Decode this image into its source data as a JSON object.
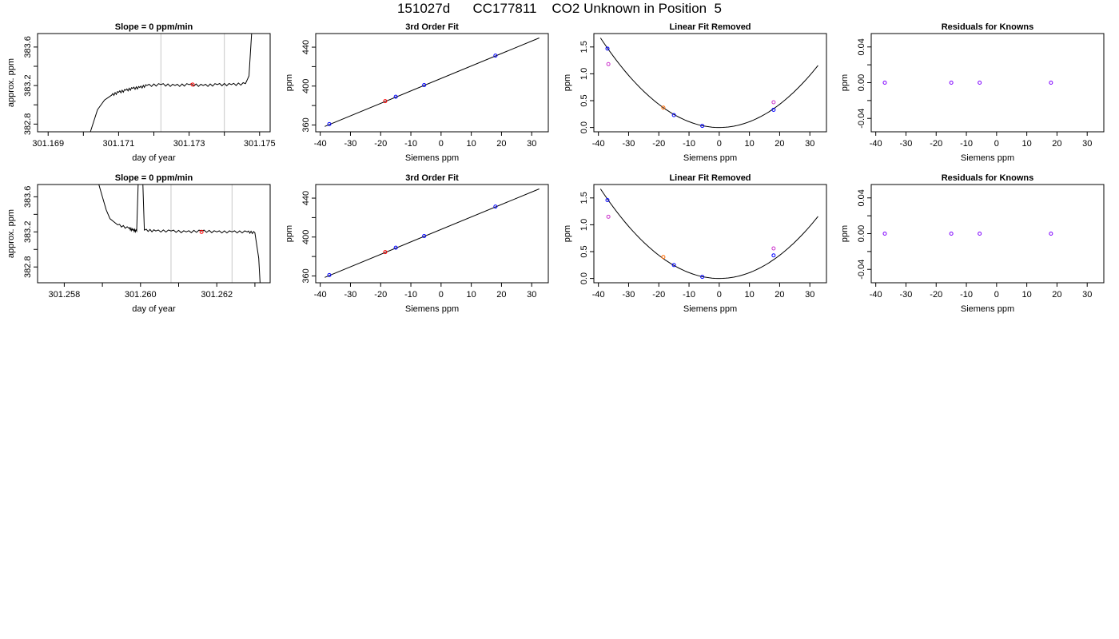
{
  "title": "151027d      CC177811    CO2 Unknown in Position  5",
  "colors": {
    "line": "#000000",
    "grid": "#c8c8c8",
    "blue": "#0000ff",
    "red": "#ff0000",
    "orange": "#ff6a00",
    "magenta": "#cc33cc",
    "purple": "#7f00ff"
  },
  "chart_data": [
    {
      "type": "line",
      "title": "Slope =  0  ppm/min",
      "xlabel": "day of year",
      "ylabel": "approx. ppm",
      "xlim": [
        301.1687,
        301.1753
      ],
      "ylim": [
        382.72,
        383.74
      ],
      "xticks": [
        "301.169",
        "301.171",
        "301.173",
        "301.175"
      ],
      "xtick_values": [
        301.169,
        301.17,
        301.171,
        301.172,
        301.173,
        301.174,
        301.175
      ],
      "yticks": [
        "382.8",
        "383.2",
        "383.6"
      ],
      "ytick_values": [
        382.8,
        383.0,
        383.2,
        383.4,
        383.6
      ],
      "vlines": [
        301.1722,
        301.174
      ],
      "trace": [
        [
          301.17,
          382.5
        ],
        [
          301.1702,
          382.72
        ],
        [
          301.1704,
          382.95
        ],
        [
          301.1706,
          383.05
        ],
        [
          301.1708,
          383.1
        ],
        [
          301.171,
          383.13
        ],
        [
          301.1712,
          383.15
        ],
        [
          301.1714,
          383.17
        ],
        [
          301.1716,
          383.18
        ],
        [
          301.1718,
          383.2
        ],
        [
          301.1722,
          383.21
        ],
        [
          301.1726,
          383.2
        ],
        [
          301.173,
          383.21
        ],
        [
          301.1734,
          383.2
        ],
        [
          301.1738,
          383.21
        ],
        [
          301.1742,
          383.21
        ],
        [
          301.1746,
          383.22
        ],
        [
          301.1747,
          383.3
        ],
        [
          301.1748,
          383.9
        ]
      ],
      "marker": {
        "x": 301.1731,
        "y": 383.21,
        "color": "red"
      }
    },
    {
      "type": "scatter",
      "title": "3rd Order Fit",
      "xlabel": "Siemens ppm",
      "ylabel": "ppm",
      "xlim": [
        -41.5,
        35.5
      ],
      "ylim": [
        353,
        454
      ],
      "xticks": [
        "-40",
        "-30",
        "-20",
        "-10",
        "0",
        "10",
        "20",
        "30"
      ],
      "xtick_values": [
        -40,
        -30,
        -20,
        -10,
        0,
        10,
        20,
        30
      ],
      "yticks": [
        "360",
        "400",
        "440"
      ],
      "ytick_values": [
        360,
        380,
        400,
        420,
        440
      ],
      "fit": {
        "kind": "line",
        "x": [
          -38.5,
          32.5
        ],
        "y": [
          358.5,
          449.5
        ]
      },
      "points": [
        {
          "x": -37,
          "y": 360.9,
          "color": "blue"
        },
        {
          "x": -18.5,
          "y": 384.5,
          "color": "red"
        },
        {
          "x": -15,
          "y": 389,
          "color": "blue"
        },
        {
          "x": -5.6,
          "y": 401,
          "color": "blue"
        },
        {
          "x": 18,
          "y": 431.3,
          "color": "blue"
        }
      ]
    },
    {
      "type": "scatter",
      "title": "Linear Fit Removed",
      "xlabel": "Siemens ppm",
      "ylabel": "ppm",
      "xlim": [
        -41.5,
        35.5
      ],
      "ylim": [
        -0.08,
        1.75
      ],
      "xticks": [
        "-40",
        "-30",
        "-20",
        "-10",
        "0",
        "10",
        "20",
        "30"
      ],
      "xtick_values": [
        -40,
        -30,
        -20,
        -10,
        0,
        10,
        20,
        30
      ],
      "yticks": [
        "0.0",
        "0.5",
        "1.0",
        "1.5"
      ],
      "ytick_values": [
        0,
        0.5,
        1.0,
        1.5
      ],
      "fit": {
        "kind": "quadratic",
        "a": 0.00108,
        "xrange": [
          -39.3,
          32.7
        ]
      },
      "points": [
        {
          "x": -37,
          "y": 1.47,
          "color": "blue"
        },
        {
          "x": -36.7,
          "y": 1.18,
          "color": "magenta"
        },
        {
          "x": -18.5,
          "y": 0.37,
          "color": "orange"
        },
        {
          "x": -15,
          "y": 0.23,
          "color": "blue"
        },
        {
          "x": -5.6,
          "y": 0.03,
          "color": "blue"
        },
        {
          "x": 18,
          "y": 0.33,
          "color": "blue"
        },
        {
          "x": 18,
          "y": 0.47,
          "color": "magenta"
        }
      ]
    },
    {
      "type": "scatter",
      "title": "Residuals for Knowns",
      "xlabel": "Siemens ppm",
      "ylabel": "ppm",
      "xlim": [
        -41.5,
        35.5
      ],
      "ylim": [
        -0.055,
        0.055
      ],
      "xticks": [
        "-40",
        "-30",
        "-20",
        "-10",
        "0",
        "10",
        "20",
        "30"
      ],
      "xtick_values": [
        -40,
        -30,
        -20,
        -10,
        0,
        10,
        20,
        30
      ],
      "yticks": [
        "-0.04",
        "0.00",
        "0.04"
      ],
      "ytick_values": [
        -0.04,
        -0.02,
        0,
        0.02,
        0.04
      ],
      "points": [
        {
          "x": -37,
          "y": 0,
          "color": "purple"
        },
        {
          "x": -15,
          "y": 0,
          "color": "purple"
        },
        {
          "x": -5.6,
          "y": 0,
          "color": "purple"
        },
        {
          "x": 18,
          "y": 0,
          "color": "purple"
        }
      ]
    },
    {
      "type": "line",
      "title": "Slope =  0  ppm/min",
      "xlabel": "day of year",
      "ylabel": "approx. ppm",
      "xlim": [
        301.2573,
        301.2634
      ],
      "ylim": [
        382.62,
        383.74
      ],
      "xticks": [
        "301.258",
        "301.260",
        "301.262"
      ],
      "xtick_values": [
        301.258,
        301.259,
        301.26,
        301.261,
        301.262,
        301.263
      ],
      "yticks": [
        "382.8",
        "383.2",
        "383.6"
      ],
      "ytick_values": [
        382.8,
        383.0,
        383.2,
        383.4,
        383.6
      ],
      "vlines": [
        301.2608,
        301.2624
      ],
      "trace": [
        [
          301.2588,
          383.9
        ],
        [
          301.259,
          383.6
        ],
        [
          301.2591,
          383.45
        ],
        [
          301.2592,
          383.35
        ],
        [
          301.2594,
          383.28
        ],
        [
          301.2597,
          383.24
        ],
        [
          301.2598,
          383.22
        ],
        [
          301.2599,
          383.21
        ],
        [
          301.25995,
          383.9
        ],
        [
          301.26005,
          383.9
        ],
        [
          301.2601,
          383.22
        ],
        [
          301.2604,
          383.21
        ],
        [
          301.2608,
          383.21
        ],
        [
          301.2612,
          383.2
        ],
        [
          301.2616,
          383.21
        ],
        [
          301.262,
          383.2
        ],
        [
          301.2624,
          383.2
        ],
        [
          301.2628,
          383.2
        ],
        [
          301.263,
          383.19
        ],
        [
          301.2631,
          382.9
        ],
        [
          301.26315,
          382.5
        ]
      ],
      "marker": {
        "x": 301.2616,
        "y": 383.2,
        "color": "red"
      }
    },
    {
      "type": "scatter",
      "title": "3rd Order Fit",
      "xlabel": "Siemens ppm",
      "ylabel": "ppm",
      "xlim": [
        -41.5,
        35.5
      ],
      "ylim": [
        353,
        454
      ],
      "xticks": [
        "-40",
        "-30",
        "-20",
        "-10",
        "0",
        "10",
        "20",
        "30"
      ],
      "xtick_values": [
        -40,
        -30,
        -20,
        -10,
        0,
        10,
        20,
        30
      ],
      "yticks": [
        "360",
        "400",
        "440"
      ],
      "ytick_values": [
        360,
        380,
        400,
        420,
        440
      ],
      "fit": {
        "kind": "line",
        "x": [
          -38.5,
          32.5
        ],
        "y": [
          358.5,
          449.5
        ]
      },
      "points": [
        {
          "x": -37,
          "y": 360.9,
          "color": "blue"
        },
        {
          "x": -18.5,
          "y": 384.5,
          "color": "red"
        },
        {
          "x": -15,
          "y": 389,
          "color": "blue"
        },
        {
          "x": -5.6,
          "y": 401,
          "color": "blue"
        },
        {
          "x": 18,
          "y": 431.3,
          "color": "blue"
        }
      ]
    },
    {
      "type": "scatter",
      "title": "Linear Fit Removed",
      "xlabel": "Siemens ppm",
      "ylabel": "ppm",
      "xlim": [
        -41.5,
        35.5
      ],
      "ylim": [
        -0.08,
        1.75
      ],
      "xticks": [
        "-40",
        "-30",
        "-20",
        "-10",
        "0",
        "10",
        "20",
        "30"
      ],
      "xtick_values": [
        -40,
        -30,
        -20,
        -10,
        0,
        10,
        20,
        30
      ],
      "yticks": [
        "0.0",
        "0.5",
        "1.0",
        "1.5"
      ],
      "ytick_values": [
        0,
        0.5,
        1.0,
        1.5
      ],
      "fit": {
        "kind": "quadratic",
        "a": 0.00108,
        "xrange": [
          -39.3,
          32.7
        ]
      },
      "points": [
        {
          "x": -37,
          "y": 1.46,
          "color": "blue"
        },
        {
          "x": -36.7,
          "y": 1.15,
          "color": "magenta"
        },
        {
          "x": -18.5,
          "y": 0.4,
          "color": "orange"
        },
        {
          "x": -15,
          "y": 0.25,
          "color": "blue"
        },
        {
          "x": -5.6,
          "y": 0.03,
          "color": "blue"
        },
        {
          "x": 18,
          "y": 0.43,
          "color": "blue"
        },
        {
          "x": 18,
          "y": 0.56,
          "color": "magenta"
        }
      ]
    },
    {
      "type": "scatter",
      "title": "Residuals for Knowns",
      "xlabel": "Siemens ppm",
      "ylabel": "ppm",
      "xlim": [
        -41.5,
        35.5
      ],
      "ylim": [
        -0.055,
        0.055
      ],
      "xticks": [
        "-40",
        "-30",
        "-20",
        "-10",
        "0",
        "10",
        "20",
        "30"
      ],
      "xtick_values": [
        -40,
        -30,
        -20,
        -10,
        0,
        10,
        20,
        30
      ],
      "yticks": [
        "-0.04",
        "0.00",
        "0.04"
      ],
      "ytick_values": [
        -0.04,
        -0.02,
        0,
        0.02,
        0.04
      ],
      "points": [
        {
          "x": -37,
          "y": 0,
          "color": "purple"
        },
        {
          "x": -15,
          "y": 0,
          "color": "purple"
        },
        {
          "x": -5.6,
          "y": 0,
          "color": "purple"
        },
        {
          "x": 18,
          "y": 0,
          "color": "purple"
        }
      ]
    }
  ]
}
